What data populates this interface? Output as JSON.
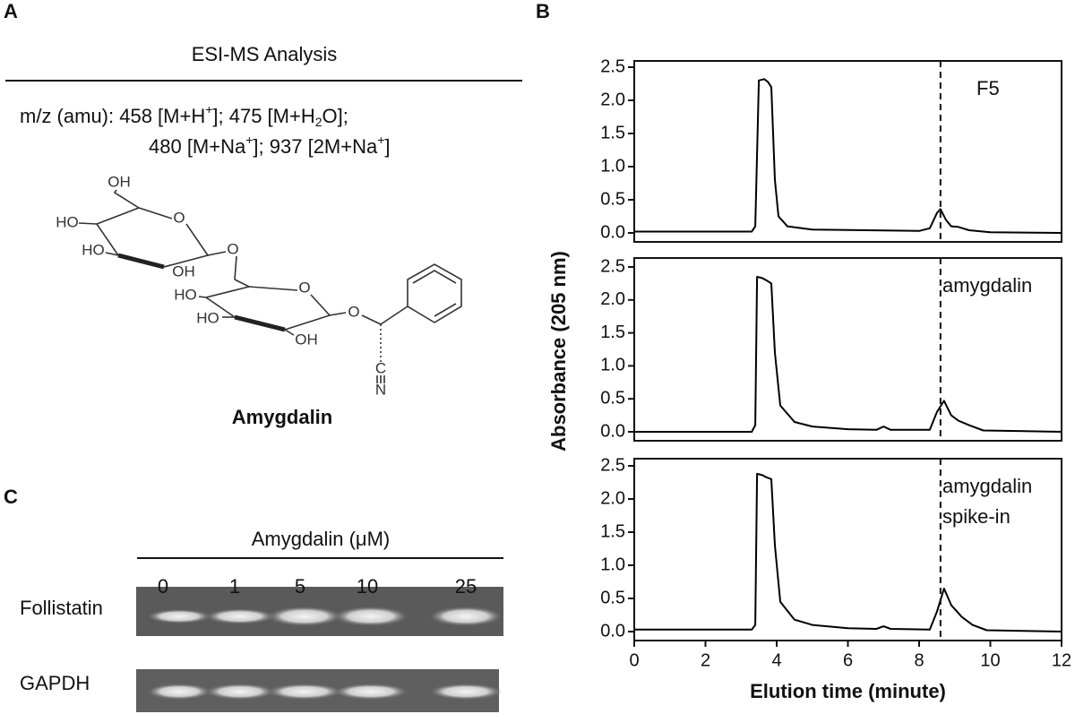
{
  "panel_a": {
    "letter": "A",
    "title": "ESI-MS Analysis",
    "ms_line1": [
      "m/z (amu): 458 [M+H",
      "+",
      "]; 475 [M+H",
      "2",
      "O];"
    ],
    "ms_line2": [
      "480 [M+Na",
      "+",
      "]; 937 [2M+Na",
      "+",
      "]"
    ],
    "structure_labels": [
      "OH",
      "HO",
      "HO",
      "OH",
      "O",
      "O",
      "HO",
      "HO",
      "OH",
      "O",
      "O",
      "C",
      "N"
    ],
    "compound": "Amygdalin"
  },
  "panel_b": {
    "letter": "B"
  },
  "panel_c": {
    "letter": "C",
    "header": "Amygdalin (μM)",
    "lanes": [
      "0",
      "1",
      "5",
      "10",
      "25"
    ],
    "rows": [
      "Follistatin",
      "GAPDH"
    ]
  },
  "chart_data": [
    {
      "type": "line",
      "annotation": [
        "F5"
      ],
      "ylabel": "Absorbance (205 nm)",
      "x": [
        0,
        3.3,
        3.4,
        3.5,
        3.65,
        3.75,
        3.85,
        3.95,
        4.05,
        4.3,
        5,
        8,
        8.3,
        8.5,
        8.6,
        8.75,
        8.9,
        9.1,
        9.4,
        10,
        12
      ],
      "values": [
        0.02,
        0.02,
        0.1,
        2.3,
        2.32,
        2.28,
        2.2,
        0.8,
        0.25,
        0.1,
        0.05,
        0.03,
        0.07,
        0.3,
        0.36,
        0.2,
        0.1,
        0.09,
        0.04,
        0.01,
        0.0
      ],
      "color": "#000000",
      "vline": 8.6,
      "xlim": [
        0,
        12
      ],
      "ylim": [
        0,
        2.5
      ],
      "yticks": [
        {
          "value": 0,
          "label": "0.0"
        },
        0.5,
        {
          "value": 1,
          "label": "1.0"
        },
        1.5,
        {
          "value": 2,
          "label": "2.0"
        },
        2.5
      ]
    },
    {
      "type": "line",
      "annotation": [
        "amygdalin"
      ],
      "x": [
        0,
        3.3,
        3.4,
        3.45,
        3.6,
        3.7,
        3.85,
        3.95,
        4.1,
        4.5,
        5,
        6,
        6.8,
        7,
        7.2,
        8.3,
        8.5,
        8.7,
        8.9,
        9.1,
        9.4,
        9.8,
        12
      ],
      "values": [
        0.0,
        0.0,
        0.1,
        2.35,
        2.33,
        2.3,
        2.25,
        1.2,
        0.4,
        0.15,
        0.08,
        0.04,
        0.03,
        0.08,
        0.03,
        0.03,
        0.3,
        0.47,
        0.25,
        0.17,
        0.1,
        0.02,
        0.0
      ],
      "color": "#000000",
      "vline": 8.6,
      "xlim": [
        0,
        12
      ],
      "ylim": [
        0,
        2.5
      ],
      "yticks": [
        {
          "value": 0,
          "label": "0.0"
        },
        0.5,
        {
          "value": 1,
          "label": "1.0"
        },
        1.5,
        {
          "value": 2,
          "label": "2.0"
        },
        2.5
      ]
    },
    {
      "type": "line",
      "annotation": [
        "amygdalin",
        "spike-in"
      ],
      "xlabel": "Elution time (minute)",
      "x": [
        0,
        3.3,
        3.4,
        3.45,
        3.6,
        3.7,
        3.85,
        3.95,
        4.1,
        4.5,
        5,
        6,
        6.8,
        7,
        7.2,
        8.3,
        8.5,
        8.7,
        8.9,
        9.2,
        9.5,
        9.9,
        12
      ],
      "values": [
        0.03,
        0.03,
        0.1,
        2.38,
        2.36,
        2.33,
        2.3,
        1.3,
        0.45,
        0.18,
        0.1,
        0.05,
        0.04,
        0.08,
        0.04,
        0.03,
        0.3,
        0.65,
        0.4,
        0.22,
        0.1,
        0.02,
        0.0
      ],
      "color": "#000000",
      "vline": 8.6,
      "xlim": [
        0,
        12
      ],
      "ylim": [
        0,
        2.5
      ],
      "xticks": [
        0,
        2,
        4,
        6,
        8,
        10,
        12
      ],
      "yticks": [
        {
          "value": 0,
          "label": "0.0"
        },
        0.5,
        {
          "value": 1,
          "label": "1.0"
        },
        1.5,
        {
          "value": 2,
          "label": "2.0"
        },
        2.5
      ]
    }
  ]
}
